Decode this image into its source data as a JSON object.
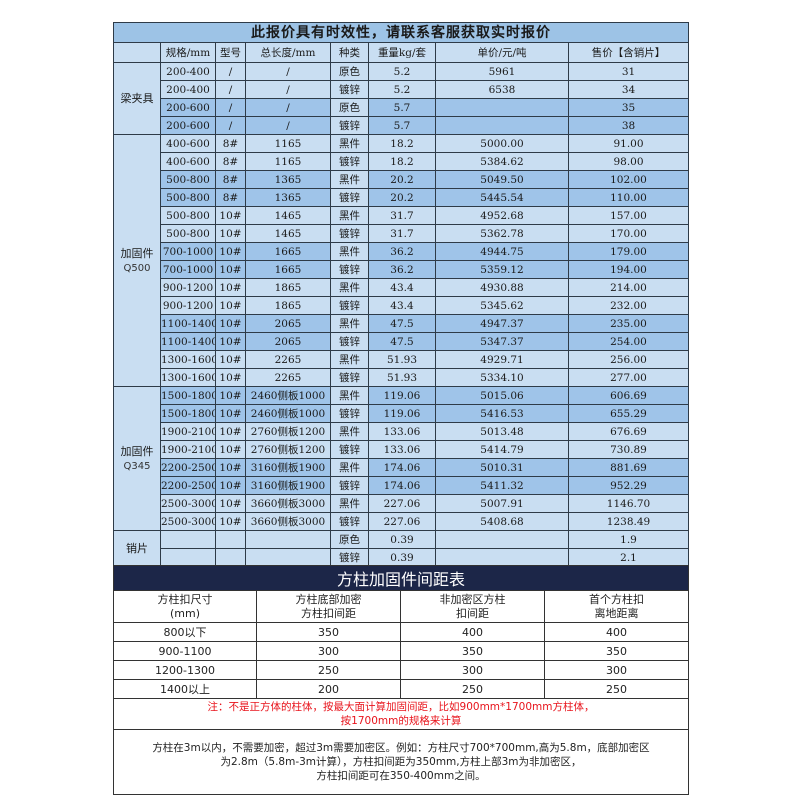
{
  "price_table": {
    "title": "此报价具有时效性，请联系客服获取实时报价",
    "headers": [
      "规格/mm",
      "型号",
      "总长度/mm",
      "种类",
      "重量kg/套",
      "单价/元/吨",
      "售价【含销片】"
    ],
    "groups": [
      {
        "name": "梁夹具",
        "sub": "",
        "rows": [
          {
            "shade": "light",
            "cells": [
              "200-400",
              "/",
              "/",
              "原色",
              "5.2",
              "5961",
              "31"
            ]
          },
          {
            "shade": "light",
            "cells": [
              "200-400",
              "/",
              "/",
              "镀锌",
              "5.2",
              "6538",
              "34"
            ]
          },
          {
            "shade": "dark",
            "cells": [
              "200-600",
              "/",
              "/",
              "原色",
              "5.7",
              "",
              "35"
            ]
          },
          {
            "shade": "dark",
            "cells": [
              "200-600",
              "/",
              "/",
              "镀锌",
              "5.7",
              "",
              "38"
            ]
          }
        ]
      },
      {
        "name": "加固件",
        "sub": "Q500",
        "rows": [
          {
            "shade": "light",
            "cells": [
              "400-600",
              "8#",
              "1165",
              "黑件",
              "18.2",
              "5000.00",
              "91.00"
            ]
          },
          {
            "shade": "light",
            "cells": [
              "400-600",
              "8#",
              "1165",
              "镀锌",
              "18.2",
              "5384.62",
              "98.00"
            ]
          },
          {
            "shade": "dark",
            "cells": [
              "500-800",
              "8#",
              "1365",
              "黑件",
              "20.2",
              "5049.50",
              "102.00"
            ]
          },
          {
            "shade": "dark",
            "cells": [
              "500-800",
              "8#",
              "1365",
              "镀锌",
              "20.2",
              "5445.54",
              "110.00"
            ]
          },
          {
            "shade": "light",
            "cells": [
              "500-800",
              "10#",
              "1465",
              "黑件",
              "31.7",
              "4952.68",
              "157.00"
            ]
          },
          {
            "shade": "light",
            "cells": [
              "500-800",
              "10#",
              "1465",
              "镀锌",
              "31.7",
              "5362.78",
              "170.00"
            ]
          },
          {
            "shade": "dark",
            "cells": [
              "700-1000",
              "10#",
              "1665",
              "黑件",
              "36.2",
              "4944.75",
              "179.00"
            ]
          },
          {
            "shade": "dark",
            "cells": [
              "700-1000",
              "10#",
              "1665",
              "镀锌",
              "36.2",
              "5359.12",
              "194.00"
            ]
          },
          {
            "shade": "light",
            "cells": [
              "900-1200",
              "10#",
              "1865",
              "黑件",
              "43.4",
              "4930.88",
              "214.00"
            ]
          },
          {
            "shade": "light",
            "cells": [
              "900-1200",
              "10#",
              "1865",
              "镀锌",
              "43.4",
              "5345.62",
              "232.00"
            ]
          },
          {
            "shade": "dark",
            "cells": [
              "1100-1400",
              "10#",
              "2065",
              "黑件",
              "47.5",
              "4947.37",
              "235.00"
            ]
          },
          {
            "shade": "dark",
            "cells": [
              "1100-1400",
              "10#",
              "2065",
              "镀锌",
              "47.5",
              "5347.37",
              "254.00"
            ]
          },
          {
            "shade": "light",
            "cells": [
              "1300-1600",
              "10#",
              "2265",
              "黑件",
              "51.93",
              "4929.71",
              "256.00"
            ]
          },
          {
            "shade": "light",
            "cells": [
              "1300-1600",
              "10#",
              "2265",
              "镀锌",
              "51.93",
              "5334.10",
              "277.00"
            ]
          }
        ]
      },
      {
        "name": "加固件",
        "sub": "Q345",
        "rows": [
          {
            "shade": "dark",
            "cells": [
              "1500-1800",
              "10#",
              "2460侧板1000",
              "黑件",
              "119.06",
              "5015.06",
              "606.69"
            ]
          },
          {
            "shade": "dark",
            "cells": [
              "1500-1800",
              "10#",
              "2460侧板1000",
              "镀锌",
              "119.06",
              "5416.53",
              "655.29"
            ]
          },
          {
            "shade": "light",
            "cells": [
              "1900-2100",
              "10#",
              "2760侧板1200",
              "黑件",
              "133.06",
              "5013.48",
              "676.69"
            ]
          },
          {
            "shade": "light",
            "cells": [
              "1900-2100",
              "10#",
              "2760侧板1200",
              "镀锌",
              "133.06",
              "5414.79",
              "730.89"
            ]
          },
          {
            "shade": "dark",
            "cells": [
              "2200-2500",
              "10#",
              "3160侧板1900",
              "黑件",
              "174.06",
              "5010.31",
              "881.69"
            ]
          },
          {
            "shade": "dark",
            "cells": [
              "2200-2500",
              "10#",
              "3160侧板1900",
              "镀锌",
              "174.06",
              "5411.32",
              "952.29"
            ]
          },
          {
            "shade": "light",
            "cells": [
              "2500-3000",
              "10#",
              "3660侧板3000",
              "黑件",
              "227.06",
              "5007.91",
              "1146.70"
            ]
          },
          {
            "shade": "light",
            "cells": [
              "2500-3000",
              "10#",
              "3660侧板3000",
              "镀锌",
              "227.06",
              "5408.68",
              "1238.49"
            ]
          }
        ]
      },
      {
        "name": "销片",
        "sub": "",
        "rows": [
          {
            "shade": "light",
            "cells": [
              "",
              "",
              "",
              "原色",
              "0.39",
              "",
              "1.9"
            ]
          },
          {
            "shade": "light",
            "cells": [
              "",
              "",
              "",
              "镀锌",
              "0.39",
              "",
              "2.1"
            ]
          }
        ]
      }
    ]
  },
  "spacing_table": {
    "title": "方柱加固件间距表",
    "headers": [
      [
        "方柱扣尺寸",
        "(mm)"
      ],
      [
        "方柱底部加密",
        "方柱扣间距"
      ],
      [
        "非加密区方柱",
        "扣间距"
      ],
      [
        "首个方柱扣",
        "离地距离"
      ]
    ],
    "rows": [
      [
        "800以下",
        "350",
        "400",
        "400"
      ],
      [
        "900-1100",
        "300",
        "350",
        "350"
      ],
      [
        "1200-1300",
        "250",
        "300",
        "300"
      ],
      [
        "1400以上",
        "200",
        "250",
        "250"
      ]
    ],
    "note": [
      "注：不是正方体的柱体，按最大面计算加固间距，比如900mm*1700mm方柱体，",
      "按1700mm的规格来计算"
    ],
    "explanation": [
      "方柱在3m以内，不需要加密，超过3m需要加密区。例如：方柱尺寸700*700mm,高为5.8m，底部加密区",
      "为2.8m（5.8m-3m计算），方柱扣间距为350mm,方柱上部3m为非加密区，",
      "方柱扣间距可在350-400mm之间。"
    ]
  },
  "colors": {
    "title_bar": "#9dc3e6",
    "row_light": "#c9def2",
    "row_dark": "#9fc4e9",
    "spacing_title_bg": "#1c2648",
    "note_text": "#e8141c"
  }
}
